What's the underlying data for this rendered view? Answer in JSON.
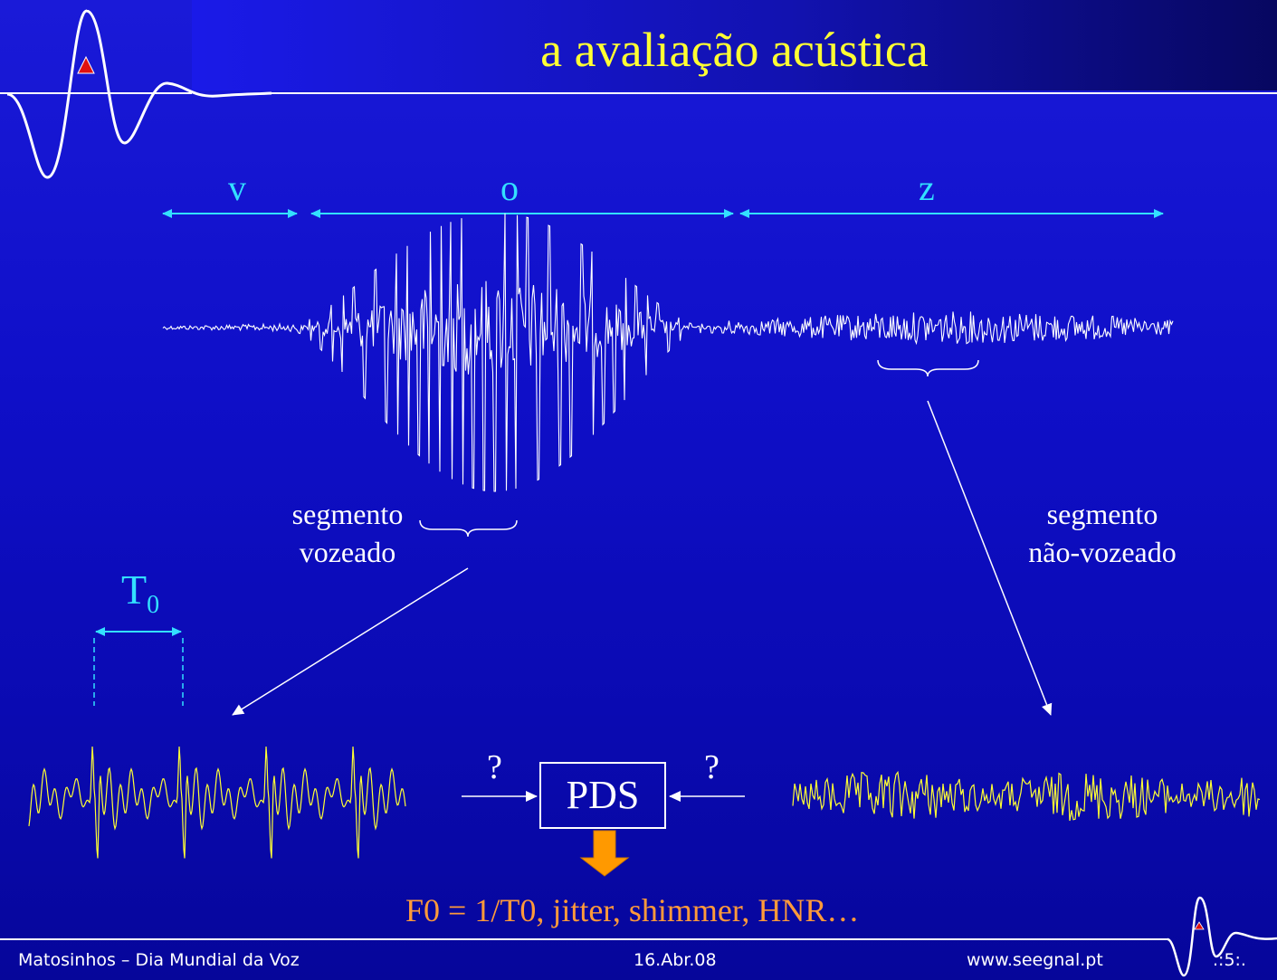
{
  "title": "a avaliação acústica",
  "segments": {
    "v": "v",
    "o": "o",
    "z": "z"
  },
  "labels": {
    "voiced_line1": "segmento",
    "voiced_line2": "vozeado",
    "unvoiced_line1": "segmento",
    "unvoiced_line2": "não-vozeado",
    "period_main": "T",
    "period_sub": "0"
  },
  "processing": {
    "box_label": "PDS",
    "input_left": "?",
    "input_right": "?",
    "output": "F0 = 1/T0, jitter, shimmer, HNR…"
  },
  "footer": {
    "event": "Matosinhos – Dia Mundial da Voz",
    "date": "16.Abr.08",
    "website": "www.seegnal.pt",
    "slide_number": ".:5:."
  },
  "colors": {
    "background": "#1010c8",
    "title": "#ffff33",
    "accent": "#33e0ff",
    "waveform_small": "#ffff33",
    "formula": "#ff9a3a",
    "arrow_fill": "#ff9900"
  }
}
